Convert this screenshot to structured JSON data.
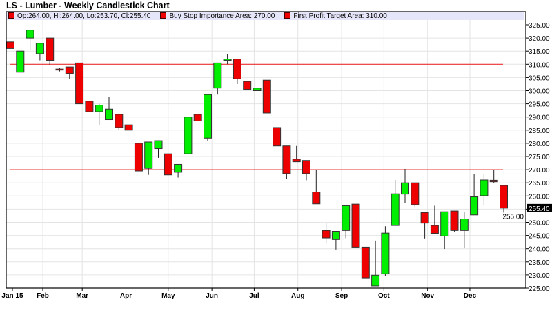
{
  "chart_data": {
    "type": "candlestick",
    "title": "LS - Lumber - Weekly Candlestick Chart",
    "legend": [
      {
        "label": "Op:264.00, Hi:264.00, Lo:253.70, Cl:255.40",
        "color": "#ee0000"
      },
      {
        "label": "Buy Stop Importance Area: 270.00",
        "color": "#ee0000"
      },
      {
        "label": "First Profit Target Area: 310.00",
        "color": "#ee0000"
      }
    ],
    "legend_placement": "top",
    "ylim": [
      225,
      325
    ],
    "y_ticks": [
      "325.00",
      "320.00",
      "315.00",
      "310.00",
      "305.00",
      "300.00",
      "295.00",
      "290.00",
      "285.00",
      "280.00",
      "275.00",
      "270.00",
      "265.00",
      "260.00",
      "255.00",
      "250.00",
      "245.00",
      "240.00",
      "235.00",
      "230.00",
      "225.00"
    ],
    "last_price_label": "255.40",
    "last_price": 255.4,
    "x_ticks": [
      {
        "label": "Jan 15",
        "date": "2015-01-01"
      },
      {
        "label": "Feb",
        "date": "2015-02-01"
      },
      {
        "label": "Mar",
        "date": "2015-03-01"
      },
      {
        "label": "Apr",
        "date": "2015-04-01"
      },
      {
        "label": "May",
        "date": "2015-05-01"
      },
      {
        "label": "Jun",
        "date": "2015-06-01"
      },
      {
        "label": "Jul",
        "date": "2015-07-01"
      },
      {
        "label": "Aug",
        "date": "2015-08-01"
      },
      {
        "label": "Sep",
        "date": "2015-09-01"
      },
      {
        "label": "Oct",
        "date": "2015-10-01"
      },
      {
        "label": "Nov",
        "date": "2015-11-01"
      },
      {
        "label": "Dec",
        "date": "2015-12-01"
      }
    ],
    "grid": true,
    "hlines": [
      {
        "value": 310,
        "color": "#ee3333"
      },
      {
        "value": 270,
        "color": "#ee3333"
      }
    ],
    "colors": {
      "up": "#00ee00",
      "down": "#ee0000",
      "outline": "#333333",
      "legend_bg": "#e6e6fa",
      "grid": "#e4e4e4"
    },
    "first_week": "2015-01-09",
    "candles": [
      [
        318.5,
        318.5,
        316.0,
        316.0
      ],
      [
        307.0,
        315.0,
        307.0,
        315.0
      ],
      [
        320.0,
        323.0,
        315.5,
        323.0
      ],
      [
        314.0,
        318.0,
        311.5,
        318.0
      ],
      [
        320.0,
        320.0,
        309.7,
        311.5
      ],
      [
        308.2,
        308.5,
        307.3,
        308.0
      ],
      [
        309.0,
        309.0,
        304.5,
        306.5
      ],
      [
        310.5,
        310.5,
        295.0,
        295.0
      ],
      [
        296.0,
        296.0,
        292.0,
        292.0
      ],
      [
        292.0,
        295.0,
        287.0,
        294.5
      ],
      [
        289.0,
        297.7,
        289.0,
        293.0
      ],
      [
        291.0,
        291.0,
        285.0,
        286.0
      ],
      [
        287.0,
        287.0,
        285.0,
        285.0
      ],
      [
        280.0,
        280.0,
        269.5,
        269.5
      ],
      [
        270.5,
        280.5,
        268.0,
        280.5
      ],
      [
        278.0,
        281.0,
        274.5,
        281.0
      ],
      [
        276.0,
        276.0,
        268.0,
        268.0
      ],
      [
        269.0,
        272.0,
        267.0,
        272.0
      ],
      [
        276.0,
        290.0,
        276.0,
        290.0
      ],
      [
        291.0,
        291.0,
        288.5,
        288.5
      ],
      [
        282.0,
        298.5,
        281.0,
        298.5
      ],
      [
        301.0,
        310.5,
        298.5,
        310.5
      ],
      [
        311.5,
        314.0,
        310.0,
        312.0
      ],
      [
        312.0,
        312.0,
        302.5,
        304.5
      ],
      [
        303.5,
        303.5,
        300.5,
        300.5
      ],
      [
        300.0,
        301.0,
        299.7,
        301.0
      ],
      [
        304.0,
        304.0,
        291.5,
        291.5
      ],
      [
        286.0,
        286.0,
        279.0,
        279.0
      ],
      [
        279.0,
        279.0,
        266.5,
        268.5
      ],
      [
        274.0,
        279.0,
        273.0,
        273.0
      ],
      [
        273.5,
        273.5,
        266.0,
        268.5
      ],
      [
        261.5,
        270.0,
        257.0,
        257.0
      ],
      [
        246.9,
        249.6,
        242.2,
        244.1
      ],
      [
        243.5,
        246.6,
        239.7,
        246.6
      ],
      [
        246.9,
        256.3,
        244.0,
        256.3
      ],
      [
        256.9,
        256.9,
        240.6,
        240.6
      ],
      [
        240.6,
        240.6,
        228.9,
        228.9
      ],
      [
        225.8,
        243.1,
        225.8,
        229.9
      ],
      [
        230.4,
        248.5,
        229.5,
        245.9
      ],
      [
        248.8,
        266.1,
        248.8,
        260.8
      ],
      [
        260.7,
        270.3,
        257.4,
        265.0
      ],
      [
        265.0,
        265.0,
        256.0,
        256.7
      ],
      [
        253.7,
        253.7,
        243.9,
        249.7
      ],
      [
        248.8,
        256.3,
        245.8,
        245.8
      ],
      [
        244.8,
        254.0,
        239.9,
        254.0
      ],
      [
        254.3,
        254.3,
        246.5,
        246.9
      ],
      [
        246.9,
        253.8,
        240.2,
        251.3
      ],
      [
        252.8,
        268.4,
        252.8,
        259.7
      ],
      [
        260.1,
        268.2,
        256.5,
        266.1
      ],
      [
        266.0,
        270.0,
        264.8,
        265.4
      ],
      [
        264.0,
        264.0,
        253.7,
        255.4
      ]
    ]
  }
}
